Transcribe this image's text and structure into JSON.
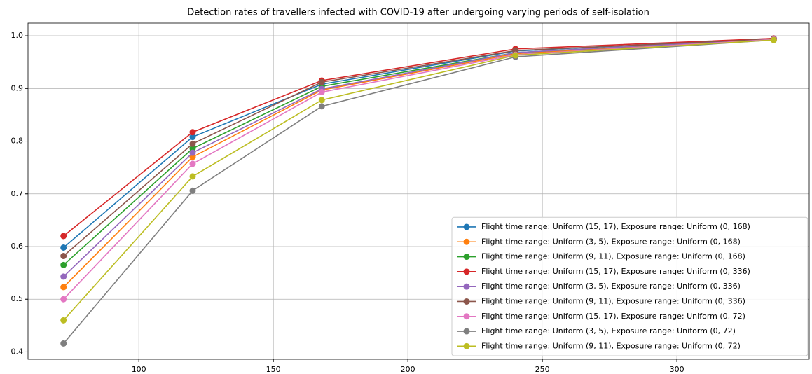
{
  "chart_data": {
    "type": "line",
    "title": "Detection rates of travellers infected with COVID-19 after undergoing varying periods of self-isolation",
    "x": [
      72,
      120,
      168,
      240,
      336
    ],
    "series": [
      {
        "name": "Flight time range: Uniform (15, 17), Exposure range: Uniform (0, 168)",
        "color": "#1f77b4",
        "values": [
          0.598,
          0.808,
          0.908,
          0.971,
          0.995
        ]
      },
      {
        "name": "Flight time range: Uniform (3, 5), Exposure range: Uniform (0, 168)",
        "color": "#ff7f0e",
        "values": [
          0.523,
          0.77,
          0.897,
          0.966,
          0.993
        ]
      },
      {
        "name": "Flight time range: Uniform (9, 11), Exposure range: Uniform (0, 168)",
        "color": "#2ca02c",
        "values": [
          0.565,
          0.786,
          0.904,
          0.968,
          0.994
        ]
      },
      {
        "name": "Flight time range: Uniform (15, 17), Exposure range: Uniform (0, 336)",
        "color": "#d62728",
        "values": [
          0.62,
          0.817,
          0.915,
          0.975,
          0.995
        ]
      },
      {
        "name": "Flight time range: Uniform (3, 5), Exposure range: Uniform (0, 336)",
        "color": "#9467bd",
        "values": [
          0.543,
          0.778,
          0.899,
          0.968,
          0.994
        ]
      },
      {
        "name": "Flight time range: Uniform (9, 11), Exposure range: Uniform (0, 336)",
        "color": "#8c564b",
        "values": [
          0.582,
          0.795,
          0.912,
          0.972,
          0.994
        ]
      },
      {
        "name": "Flight time range: Uniform (15, 17), Exposure range: Uniform (0, 72)",
        "color": "#e377c2",
        "values": [
          0.5,
          0.757,
          0.893,
          0.964,
          0.993
        ]
      },
      {
        "name": "Flight time range: Uniform (3, 5), Exposure range: Uniform (0, 72)",
        "color": "#7f7f7f",
        "values": [
          0.416,
          0.706,
          0.866,
          0.96,
          0.992
        ]
      },
      {
        "name": "Flight time range: Uniform (9, 11), Exposure range: Uniform (0, 72)",
        "color": "#bcbd22",
        "values": [
          0.46,
          0.733,
          0.878,
          0.963,
          0.992
        ]
      }
    ],
    "xlim": [
      58.8,
      349.2
    ],
    "ylim": [
      0.386,
      1.024
    ],
    "xticks": [
      100,
      150,
      200,
      250,
      300
    ],
    "yticks": [
      0.4,
      0.5,
      0.6,
      0.7,
      0.8,
      0.9,
      {
        "value": 1,
        "label": "1.0"
      }
    ],
    "grid": true,
    "legend": "lower right"
  }
}
